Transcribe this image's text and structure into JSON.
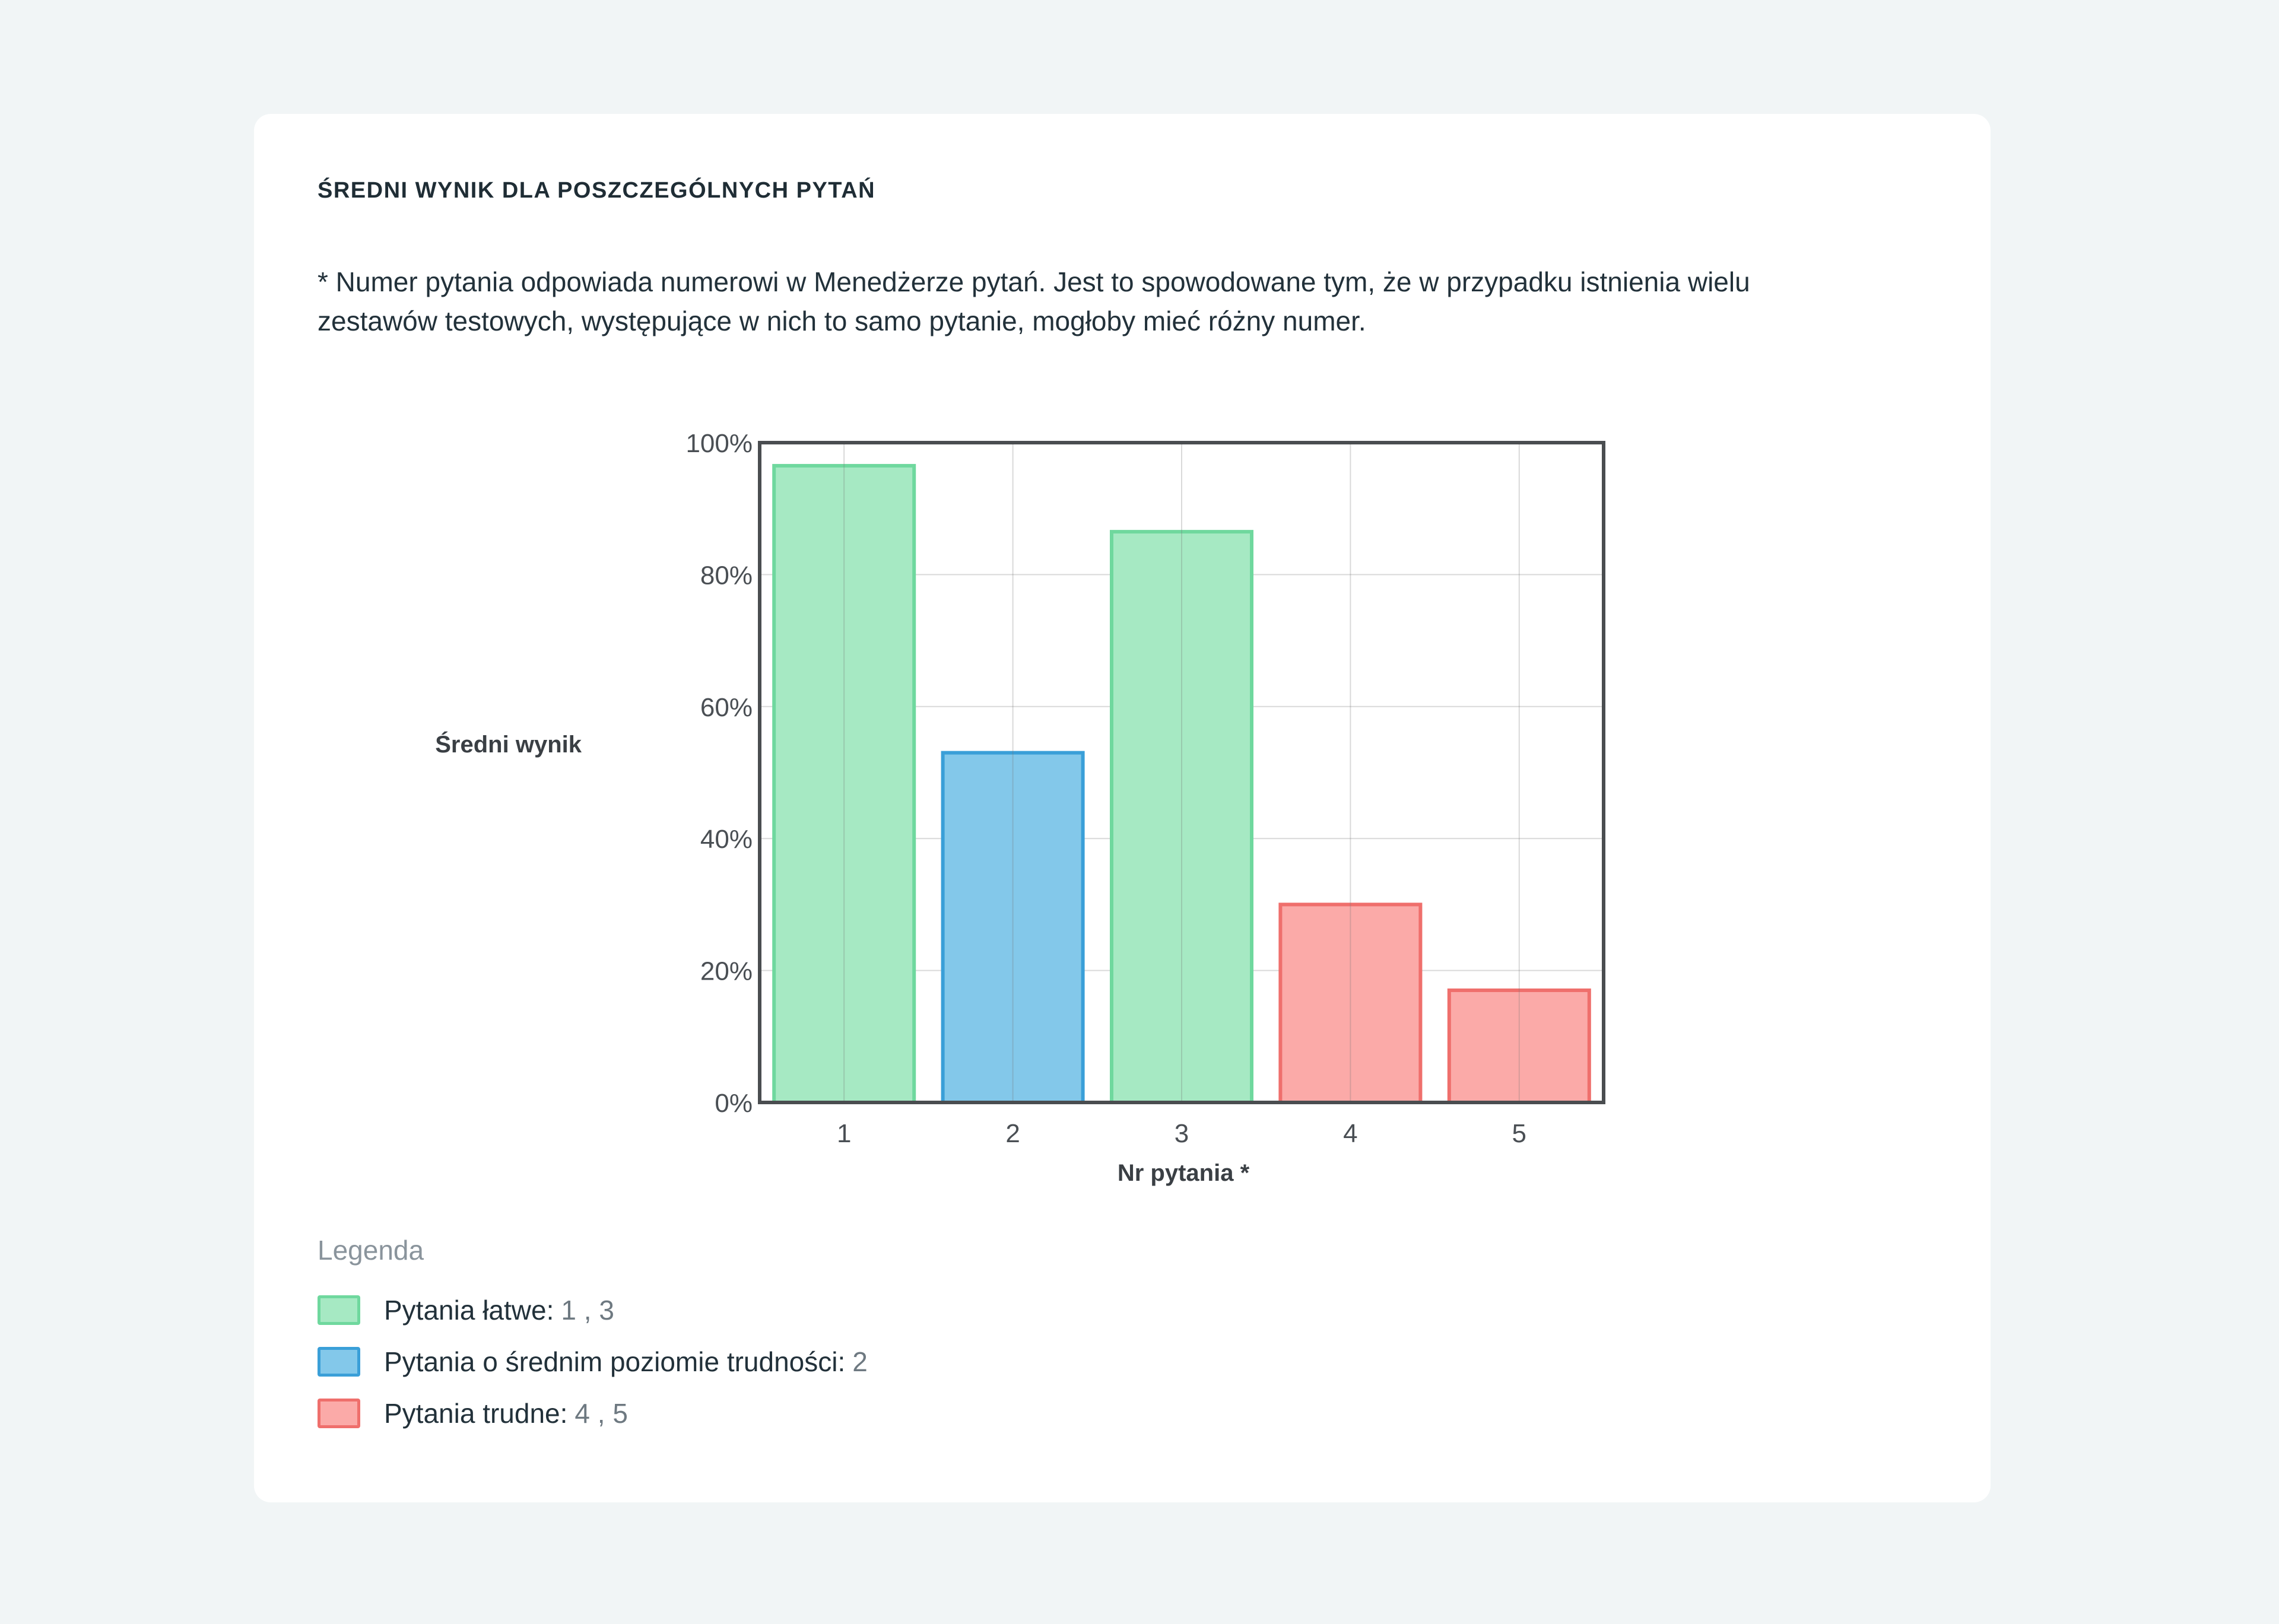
{
  "card": {
    "title": "ŚREDNI WYNIK DLA POSZCZEGÓLNYCH PYTAŃ",
    "note": "* Numer pytania odpowiada numerowi w Menedżerze pytań. Jest to spowodowane tym, że w przypadku istnienia wielu zestawów testowych, występujące w nich to samo pytanie, mogłoby mieć różny numer."
  },
  "chart_data": {
    "type": "bar",
    "categories": [
      "1",
      "2",
      "3",
      "4",
      "5"
    ],
    "values": [
      96.5,
      53,
      86.5,
      30,
      17
    ],
    "difficulty": [
      "easy",
      "medium",
      "easy",
      "hard",
      "hard"
    ],
    "ylabel": "Średni wynik",
    "xlabel": "Nr pytania *",
    "ylim": [
      0,
      100
    ],
    "yticks": [
      0,
      20,
      40,
      60,
      80,
      100
    ],
    "ytick_suffix": "%",
    "grid": true
  },
  "colors": {
    "easy": {
      "fill": "#a6e9c3",
      "stroke": "#6fd89e"
    },
    "medium": {
      "fill": "#83c8ea",
      "stroke": "#3a9fd8"
    },
    "hard": {
      "fill": "#fbaaa8",
      "stroke": "#ef6f6c"
    },
    "axis": "#4a4d50",
    "grid": "#d9d9d9"
  },
  "legend": {
    "title": "Legenda",
    "items": [
      {
        "key": "easy",
        "label": "Pytania łatwe:",
        "values": "1 , 3"
      },
      {
        "key": "medium",
        "label": "Pytania o średnim poziomie trudności:",
        "values": "2"
      },
      {
        "key": "hard",
        "label": "Pytania trudne:",
        "values": "4 , 5"
      }
    ]
  }
}
